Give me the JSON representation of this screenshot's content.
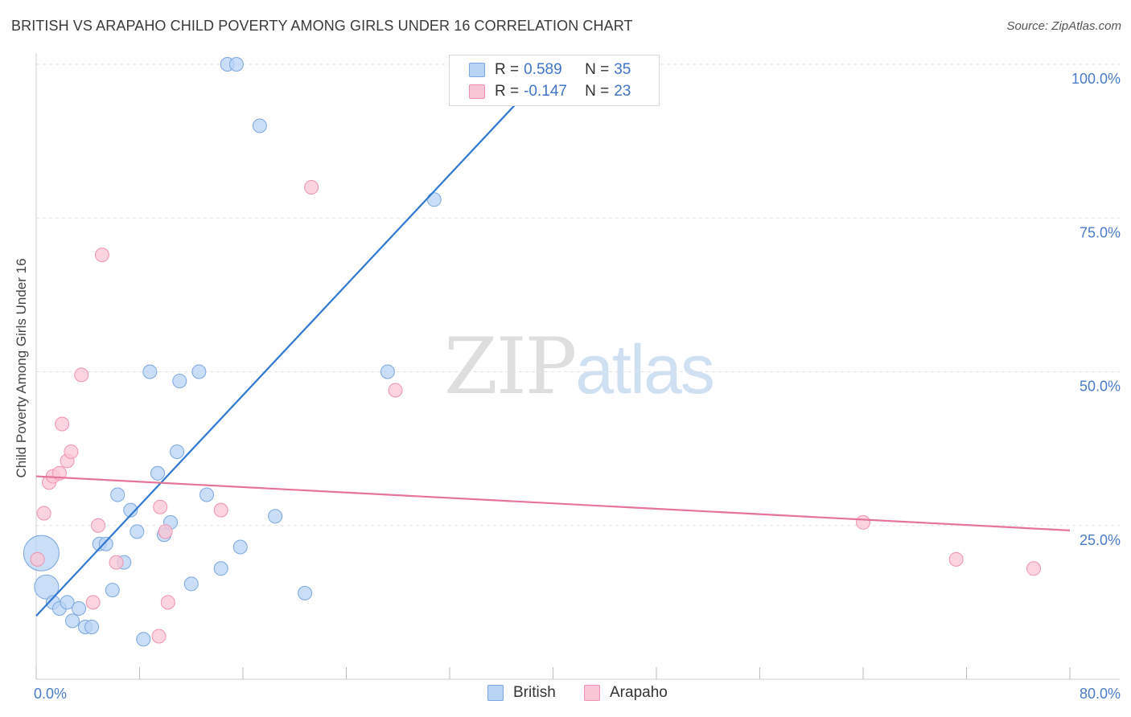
{
  "header": {
    "title": "BRITISH VS ARAPAHO CHILD POVERTY AMONG GIRLS UNDER 16 CORRELATION CHART",
    "source": "Source: ZipAtlas.com"
  },
  "watermark": {
    "zip": "ZIP",
    "atlas": "atlas"
  },
  "legend": {
    "rows": [
      {
        "r_label": "R =",
        "r_value": "0.589",
        "n_label": "N =",
        "n_value": "35"
      },
      {
        "r_label": "R =",
        "r_value": "-0.147",
        "n_label": "N =",
        "n_value": "23"
      }
    ]
  },
  "bottom_legend": {
    "british": "British",
    "arapaho": "Arapaho"
  },
  "colors": {
    "british_fill": "#b9d3f5",
    "british_stroke": "#7aa7e0",
    "british_line": "#2f78d0",
    "arapaho_fill": "#f9c6d5",
    "arapaho_stroke": "#ef92ad",
    "arapaho_line": "#e5739a",
    "grid": "#e3e3e3",
    "tick_text": "#4a7cc9"
  },
  "chart_data": {
    "type": "scatter",
    "title": "BRITISH VS ARAPAHO CHILD POVERTY AMONG GIRLS UNDER 16 CORRELATION CHART",
    "xlabel": "",
    "ylabel": "Child Poverty Among Girls Under 16",
    "xlim": [
      0,
      80
    ],
    "ylim": [
      0,
      100
    ],
    "x_tick_labels": [
      "0.0%",
      "80.0%"
    ],
    "y_ticks": [
      25,
      50,
      75,
      100
    ],
    "y_tick_labels": [
      "25.0%",
      "50.0%",
      "75.0%",
      "100.0%"
    ],
    "series": [
      {
        "name": "British",
        "r": 0.589,
        "n": 35,
        "trendline": {
          "x": [
            0,
            40
          ],
          "y": [
            10.3,
            100
          ]
        },
        "points": [
          {
            "x": 0.4,
            "y": 20.5,
            "big": 2
          },
          {
            "x": 0.8,
            "y": 15.0,
            "big": 1
          },
          {
            "x": 1.3,
            "y": 12.5
          },
          {
            "x": 1.8,
            "y": 11.5
          },
          {
            "x": 2.4,
            "y": 12.5
          },
          {
            "x": 2.8,
            "y": 9.5
          },
          {
            "x": 3.3,
            "y": 11.5
          },
          {
            "x": 3.8,
            "y": 8.5
          },
          {
            "x": 4.3,
            "y": 8.5
          },
          {
            "x": 4.9,
            "y": 22.0
          },
          {
            "x": 5.4,
            "y": 22.0
          },
          {
            "x": 5.9,
            "y": 14.5
          },
          {
            "x": 6.3,
            "y": 30.0
          },
          {
            "x": 6.8,
            "y": 19.0
          },
          {
            "x": 7.3,
            "y": 27.5
          },
          {
            "x": 7.8,
            "y": 24.0
          },
          {
            "x": 8.3,
            "y": 6.5
          },
          {
            "x": 8.8,
            "y": 50.0
          },
          {
            "x": 9.4,
            "y": 33.5
          },
          {
            "x": 9.9,
            "y": 23.5
          },
          {
            "x": 10.4,
            "y": 25.5
          },
          {
            "x": 10.9,
            "y": 37.0
          },
          {
            "x": 11.1,
            "y": 48.5
          },
          {
            "x": 12.0,
            "y": 15.5
          },
          {
            "x": 12.6,
            "y": 50.0
          },
          {
            "x": 13.2,
            "y": 30.0
          },
          {
            "x": 14.3,
            "y": 18.0
          },
          {
            "x": 14.8,
            "y": 100.0
          },
          {
            "x": 15.5,
            "y": 100.0
          },
          {
            "x": 15.8,
            "y": 21.5
          },
          {
            "x": 17.3,
            "y": 90.0
          },
          {
            "x": 18.5,
            "y": 26.5
          },
          {
            "x": 20.8,
            "y": 14.0
          },
          {
            "x": 27.2,
            "y": 50.0
          },
          {
            "x": 30.8,
            "y": 78.0
          }
        ]
      },
      {
        "name": "Arapaho",
        "r": -0.147,
        "n": 23,
        "trendline": {
          "x": [
            0,
            80
          ],
          "y": [
            33.0,
            24.2
          ]
        },
        "points": [
          {
            "x": 0.1,
            "y": 19.5
          },
          {
            "x": 0.6,
            "y": 27.0
          },
          {
            "x": 1.0,
            "y": 32.0
          },
          {
            "x": 1.3,
            "y": 33.0
          },
          {
            "x": 1.8,
            "y": 33.5
          },
          {
            "x": 2.0,
            "y": 41.5
          },
          {
            "x": 2.4,
            "y": 35.5
          },
          {
            "x": 2.7,
            "y": 37.0
          },
          {
            "x": 3.5,
            "y": 49.5
          },
          {
            "x": 4.4,
            "y": 12.5
          },
          {
            "x": 4.8,
            "y": 25.0
          },
          {
            "x": 5.1,
            "y": 69.0
          },
          {
            "x": 6.2,
            "y": 19.0
          },
          {
            "x": 9.5,
            "y": 7.0
          },
          {
            "x": 9.6,
            "y": 28.0
          },
          {
            "x": 10.0,
            "y": 24.0
          },
          {
            "x": 10.2,
            "y": 12.5
          },
          {
            "x": 14.3,
            "y": 27.5
          },
          {
            "x": 21.3,
            "y": 80.0
          },
          {
            "x": 27.8,
            "y": 47.0
          },
          {
            "x": 64.0,
            "y": 25.5
          },
          {
            "x": 71.2,
            "y": 19.5
          },
          {
            "x": 77.2,
            "y": 18.0
          }
        ]
      }
    ]
  }
}
